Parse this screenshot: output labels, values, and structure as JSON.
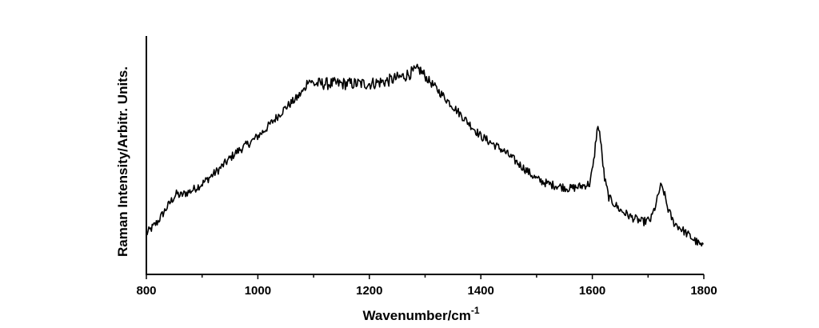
{
  "chart_data": {
    "type": "line",
    "title": "",
    "xlabel": "Wavenumber/cm",
    "xlabel_superscript": "-1",
    "ylabel": "Raman Intensity/Arbitr. Units.",
    "xlim": [
      800,
      1800
    ],
    "ylim": [
      0,
      100
    ],
    "x_ticks": [
      800,
      1000,
      1200,
      1400,
      1600,
      1800
    ],
    "x_minor_step": 100,
    "y_ticks_shown": false,
    "grid": false,
    "legend": "none",
    "line_color": "#000000",
    "series": [
      {
        "x": [
          800,
          820,
          845,
          855,
          860,
          880,
          900,
          930,
          960,
          990,
          1010,
          1030,
          1050,
          1070,
          1085,
          1090,
          1100,
          1120,
          1150,
          1180,
          1200,
          1230,
          1260,
          1280,
          1290,
          1300,
          1320,
          1340,
          1360,
          1380,
          1400,
          1420,
          1440,
          1460,
          1480,
          1500,
          1520,
          1540,
          1560,
          1580,
          1595,
          1602,
          1608,
          1612,
          1616,
          1622,
          1630,
          1650,
          1670,
          1690,
          1705,
          1715,
          1722,
          1728,
          1735,
          1745,
          1760,
          1780,
          1800
        ],
        "y": [
          17,
          22,
          31,
          34,
          33,
          35,
          38,
          44,
          51,
          56,
          60,
          65,
          70,
          74,
          78,
          82,
          80,
          80,
          80,
          80,
          80,
          81,
          83,
          85,
          86,
          83,
          78,
          73,
          68,
          63,
          58,
          55,
          52,
          48,
          44,
          40,
          38,
          37,
          36,
          37,
          38,
          46,
          60,
          62,
          53,
          40,
          32,
          27,
          24,
          22,
          23,
          30,
          37,
          35,
          28,
          22,
          19,
          15,
          11
        ]
      }
    ]
  }
}
